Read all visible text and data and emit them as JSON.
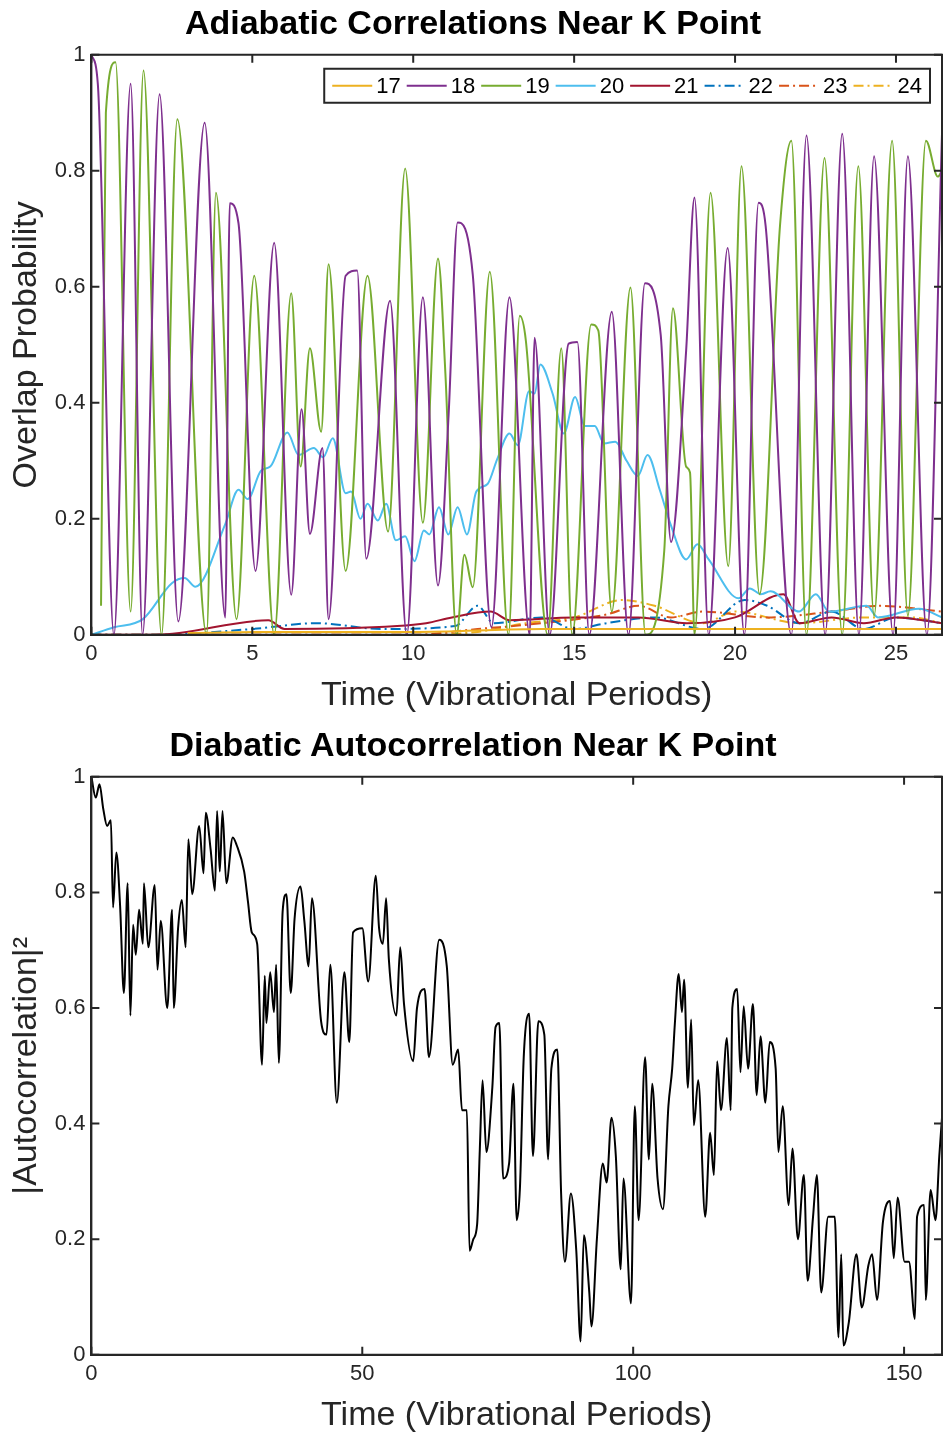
{
  "chart_data": [
    {
      "type": "line",
      "title": "Adiabatic Correlations Near K Point",
      "xlabel": "Time (Vibrational Periods)",
      "ylabel": "Overlap Probability",
      "xlim": [
        0,
        26.43
      ],
      "xticks": [
        0,
        5,
        10,
        15,
        20,
        25
      ],
      "ylim": [
        0,
        1
      ],
      "yticks": [
        0,
        0.2,
        0.4,
        0.6,
        0.8,
        1
      ],
      "grid": false,
      "legend": "top right",
      "marker": "none",
      "line_style": "solid",
      "series": [
        {
          "name": "17",
          "color": "#edb120",
          "x": [
            3,
            6,
            10,
            14,
            18,
            22,
            26.43
          ],
          "values": [
            0.003,
            0.005,
            0.005,
            0.01,
            0.01,
            0.01,
            0.01
          ]
        },
        {
          "name": "18",
          "color": "#7e2f8e",
          "x": [
            0,
            0.2,
            0.7,
            1.22,
            1.59,
            2.12,
            2.7,
            3.52,
            4.16,
            4.3,
            4.57,
            5.1,
            5.68,
            6.21,
            6.53,
            6.79,
            7.18,
            7.37,
            7.9,
            8.26,
            8.54,
            9.28,
            9.8,
            10.3,
            10.77,
            11.1,
            11.38,
            11.85,
            12.43,
            12.99,
            13.62,
            13.77,
            14.24,
            14.83,
            15.1,
            15.47,
            16.17,
            16.69,
            17.2,
            17.69,
            18.01,
            18.48,
            18.74,
            19.18,
            19.77,
            20.29,
            20.73,
            20.95,
            21.75,
            22.22,
            22.8,
            23.33,
            23.85,
            24.32,
            24.91,
            25.37,
            25.96,
            26.43
          ],
          "values": [
            1,
            0.95,
            0,
            0.95,
            0,
            0.932,
            0.023,
            0.883,
            0.03,
            0.744,
            0.71,
            0.11,
            0.676,
            0.069,
            0.389,
            0.174,
            0.322,
            0.027,
            0.619,
            0.628,
            0.131,
            0.576,
            0,
            0.582,
            0.085,
            0.38,
            0.711,
            0.621,
            0.013,
            0.582,
            0,
            0.512,
            0,
            0.502,
            0.505,
            0,
            0.557,
            0,
            0.606,
            0.517,
            0.16,
            0.49,
            0.754,
            0,
            0.667,
            0,
            0.745,
            0.705,
            0,
            0.861,
            0,
            0.864,
            0,
            0.825,
            0,
            0.825,
            0,
            0.864
          ]
        },
        {
          "name": "19",
          "color": "#77ac30",
          "x": [
            0.3,
            0.45,
            0.75,
            1.22,
            1.62,
            2.18,
            2.67,
            3.58,
            3.87,
            4.51,
            5.06,
            5.68,
            6.21,
            6.5,
            6.79,
            7.14,
            7.37,
            7.9,
            8.58,
            9.22,
            9.75,
            10.3,
            10.77,
            11.0,
            11.35,
            11.59,
            11.85,
            12.38,
            12.96,
            13.31,
            13.5,
            14.18,
            14.6,
            14.94,
            15.53,
            15.75,
            16.17,
            16.75,
            17.22,
            17.8,
            18.07,
            18.48,
            18.6,
            18.74,
            19.24,
            19.79,
            20.2,
            20.76,
            21.4,
            21.75,
            22.22,
            22.78,
            23.33,
            23.83,
            24.32,
            24.88,
            25.37,
            25.93,
            26.3,
            26.43
          ],
          "values": [
            0.05,
            0.9,
            0.987,
            0.04,
            0.973,
            0,
            0.889,
            0,
            0.762,
            0.027,
            0.619,
            0,
            0.589,
            0.29,
            0.494,
            0.35,
            0.639,
            0.11,
            0.619,
            0.178,
            0.804,
            0.193,
            0.649,
            0.45,
            0,
            0.138,
            0.082,
            0.626,
            0,
            0.55,
            0.507,
            0,
            0.494,
            0,
            0.535,
            0.525,
            0.04,
            0.599,
            0,
            0.145,
            0.563,
            0.29,
            0.28,
            0,
            0.762,
            0.118,
            0.808,
            0.07,
            0.708,
            0.852,
            0,
            0.822,
            0,
            0.808,
            0.033,
            0.852,
            0.033,
            0.852,
            0.79,
            0.8
          ]
        },
        {
          "name": "20",
          "color": "#4dbeee",
          "x": [
            0,
            0.7,
            1.6,
            2.5,
            2.9,
            3.23,
            4.16,
            4.57,
            4.86,
            5.27,
            5.56,
            6.09,
            6.44,
            6.91,
            7.2,
            7.5,
            7.9,
            8.07,
            8.36,
            8.58,
            8.9,
            9.16,
            9.46,
            9.75,
            10.04,
            10.33,
            10.5,
            10.8,
            11.09,
            11.38,
            11.67,
            11.96,
            12.31,
            12.61,
            12.99,
            13.25,
            13.6,
            13.77,
            13.95,
            14.33,
            14.68,
            15.03,
            15.33,
            15.64,
            15.93,
            16.28,
            16.63,
            16.98,
            17.28,
            17.66,
            18.0,
            18.48,
            18.83,
            19.18,
            20.11,
            20.46,
            20.8,
            21.1,
            21.99,
            22.51,
            22.92,
            24.09,
            24.44,
            25.72,
            26.43
          ],
          "values": [
            0,
            0.013,
            0.027,
            0.089,
            0.098,
            0.083,
            0.191,
            0.25,
            0.234,
            0.283,
            0.29,
            0.349,
            0.31,
            0.322,
            0.306,
            0.339,
            0.244,
            0.247,
            0.2,
            0.226,
            0.197,
            0.226,
            0.163,
            0.17,
            0.127,
            0.18,
            0.173,
            0.22,
            0.173,
            0.22,
            0.173,
            0.247,
            0.26,
            0.303,
            0.347,
            0.327,
            0.42,
            0.416,
            0.466,
            0.416,
            0.347,
            0.41,
            0.36,
            0.36,
            0.33,
            0.333,
            0.3,
            0.274,
            0.31,
            0.25,
            0.19,
            0.13,
            0.156,
            0.13,
            0.063,
            0.08,
            0.07,
            0.075,
            0.04,
            0.07,
            0.04,
            0.05,
            0.03,
            0.045,
            0.03
          ]
        },
        {
          "name": "21",
          "color": "#a2142f",
          "x": [
            0,
            2,
            5.5,
            6,
            9.5,
            10.4,
            11.2,
            12.4,
            13,
            15,
            17,
            18.5,
            20,
            21.5,
            22,
            23,
            24,
            25,
            26.43
          ],
          "values": [
            0,
            0,
            0.025,
            0.01,
            0.015,
            0.02,
            0.03,
            0.04,
            0.025,
            0.03,
            0.03,
            0.02,
            0.03,
            0.07,
            0.02,
            0.03,
            0.02,
            0.03,
            0.02
          ]
        },
        {
          "name": "22",
          "color": "#0072bd",
          "line_style": "dashdot",
          "x": [
            0,
            2,
            5,
            7,
            9,
            11.3,
            12,
            12.5,
            14,
            15,
            16,
            17.5,
            19,
            20.3,
            21,
            22,
            23,
            24,
            25,
            26.43
          ],
          "values": [
            0,
            0,
            0.01,
            0.02,
            0.01,
            0.015,
            0.05,
            0.02,
            0.03,
            0.01,
            0.02,
            0.03,
            0.01,
            0.06,
            0.05,
            0.02,
            0.04,
            0.01,
            0.03,
            0.02
          ]
        },
        {
          "name": "23",
          "color": "#d95319",
          "line_style": "dashdot",
          "x": [
            0,
            10,
            12,
            14,
            16,
            17,
            18,
            19,
            21,
            23,
            24.5,
            26.43
          ],
          "values": [
            0,
            0,
            0.01,
            0.02,
            0.035,
            0.05,
            0.03,
            0.04,
            0.03,
            0.04,
            0.05,
            0.04
          ]
        },
        {
          "name": "24",
          "color": "#edb120",
          "line_style": "dashdot",
          "x": [
            0,
            10,
            12,
            13.5,
            15,
            16.5,
            17.5,
            19,
            20,
            22,
            24,
            25.5,
            26.43
          ],
          "values": [
            0,
            0,
            0.005,
            0.02,
            0.03,
            0.06,
            0.05,
            0.02,
            0.04,
            0.02,
            0.03,
            0.03,
            0.02
          ]
        }
      ]
    },
    {
      "type": "line",
      "title": "Diabatic Autocorrelation Near K Point",
      "xlabel": "Time (Vibrational Periods)",
      "ylabel": "|Autocorrelation|²",
      "xlim": [
        0,
        157
      ],
      "xticks": [
        0,
        50,
        100,
        150
      ],
      "ylim": [
        0,
        1
      ],
      "yticks": [
        0,
        0.2,
        0.4,
        0.6,
        0.8,
        1
      ],
      "grid": false,
      "marker": "none",
      "line_style": "solid",
      "series": [
        {
          "color": "#000000",
          "x": [
            0,
            0.8,
            1.5,
            2.2,
            2.9,
            3.6,
            4.0,
            4.6,
            5.3,
            6.0,
            6.7,
            7.2,
            7.7,
            8.2,
            8.8,
            9.5,
            9.7,
            10.5,
            11.7,
            12.2,
            12.8,
            14.0,
            14.9,
            15.2,
            16.0,
            16.7,
            17.4,
            17.9,
            18.6,
            19.9,
            20.7,
            21.1,
            22.0,
            22.8,
            23.2,
            23.7,
            24.2,
            24.9,
            26.1,
            26.8,
            28.2,
            28.9,
            29.6,
            30.6,
            31.5,
            32.0,
            32.3,
            33.0,
            33.7,
            34.1,
            34.6,
            35.3,
            36.0,
            36.8,
            37.5,
            38.6,
            39.3,
            40.1,
            40.7,
            42.4,
            43.4,
            44.1,
            45.3,
            46.7,
            47.6,
            48.3,
            50.0,
            51.1,
            52.5,
            53.1,
            53.8,
            54.4,
            54.9,
            56.3,
            57.0,
            57.7,
            59.4,
            60.1,
            61.5,
            62.3,
            64.2,
            65.6,
            66.7,
            67.7,
            68.4,
            69.3,
            69.8,
            70.5,
            71.2,
            71.7,
            72.2,
            72.9,
            74.0,
            74.6,
            75.3,
            76.0,
            77.1,
            77.9,
            78.5,
            79.1,
            79.8,
            80.8,
            81.5,
            82.5,
            83.6,
            84.3,
            84.9,
            86.0,
            86.7,
            87.4,
            88.5,
            89.5,
            90.3,
            90.9,
            91.9,
            92.3,
            93.3,
            94.4,
            95.1,
            96.0,
            96.8,
            97.7,
            98.2,
            99.6,
            100.3,
            101.0,
            102.2,
            102.9,
            103.5,
            104.5,
            105.5,
            106.5,
            107.2,
            107.7,
            108.4,
            109.0,
            109.4,
            110.1,
            110.7,
            111.2,
            112.0,
            113.3,
            114.2,
            114.9,
            115.5,
            116.2,
            117.3,
            118.0,
            118.3,
            119.2,
            119.8,
            120.4,
            121.2,
            122.1,
            122.8,
            123.5,
            124.4,
            125.2,
            126.3,
            126.8,
            127.6,
            128.7,
            129.4,
            130.4,
            131.5,
            132.2,
            133.2,
            133.9,
            134.7,
            136.0,
            137.2,
            137.9,
            138.4,
            138.8,
            139.8,
            141.2,
            142.2,
            143.4,
            144.1,
            145.0,
            146.1,
            147.4,
            148.1,
            148.8,
            150.1,
            150.9,
            152.0,
            152.4,
            153.7,
            154.0,
            154.9,
            155.8,
            156.5,
            157.0
          ],
          "values": [
            1.0,
            0.964,
            0.987,
            0.944,
            0.915,
            0.925,
            0.774,
            0.869,
            0.777,
            0.626,
            0.816,
            0.587,
            0.744,
            0.692,
            0.77,
            0.711,
            0.816,
            0.705,
            0.813,
            0.666,
            0.751,
            0.6,
            0.77,
            0.6,
            0.738,
            0.787,
            0.705,
            0.892,
            0.797,
            0.915,
            0.833,
            0.938,
            0.875,
            0.803,
            0.941,
            0.836,
            0.941,
            0.816,
            0.895,
            0.882,
            0.836,
            0.784,
            0.731,
            0.711,
            0.502,
            0.656,
            0.574,
            0.662,
            0.593,
            0.675,
            0.505,
            0.767,
            0.797,
            0.626,
            0.754,
            0.81,
            0.751,
            0.672,
            0.79,
            0.577,
            0.554,
            0.675,
            0.436,
            0.662,
            0.541,
            0.731,
            0.738,
            0.646,
            0.829,
            0.738,
            0.711,
            0.79,
            0.685,
            0.587,
            0.705,
            0.607,
            0.508,
            0.6,
            0.633,
            0.515,
            0.718,
            0.672,
            0.502,
            0.528,
            0.423,
            0.423,
            0.18,
            0.2,
            0.226,
            0.357,
            0.475,
            0.351,
            0.462,
            0.567,
            0.574,
            0.305,
            0.331,
            0.469,
            0.233,
            0.289,
            0.515,
            0.59,
            0.344,
            0.577,
            0.554,
            0.338,
            0.495,
            0.528,
            0.279,
            0.161,
            0.279,
            0.18,
            0.023,
            0.207,
            0.108,
            0.049,
            0.2,
            0.331,
            0.298,
            0.41,
            0.344,
            0.148,
            0.305,
            0.089,
            0.43,
            0.233,
            0.515,
            0.338,
            0.469,
            0.305,
            0.252,
            0.43,
            0.495,
            0.574,
            0.659,
            0.593,
            0.649,
            0.462,
            0.58,
            0.397,
            0.475,
            0.239,
            0.384,
            0.311,
            0.508,
            0.423,
            0.548,
            0.423,
            0.6,
            0.633,
            0.489,
            0.603,
            0.495,
            0.607,
            0.449,
            0.551,
            0.436,
            0.541,
            0.495,
            0.351,
            0.43,
            0.259,
            0.357,
            0.2,
            0.311,
            0.128,
            0.239,
            0.311,
            0.108,
            0.239,
            0.239,
            0.03,
            0.174,
            0.016,
            0.056,
            0.174,
            0.082,
            0.154,
            0.174,
            0.095,
            0.23,
            0.266,
            0.167,
            0.272,
            0.161,
            0.161,
            0.062,
            0.239,
            0.259,
            0.095,
            0.285,
            0.233,
            0.344,
            0.41
          ]
        }
      ]
    }
  ]
}
